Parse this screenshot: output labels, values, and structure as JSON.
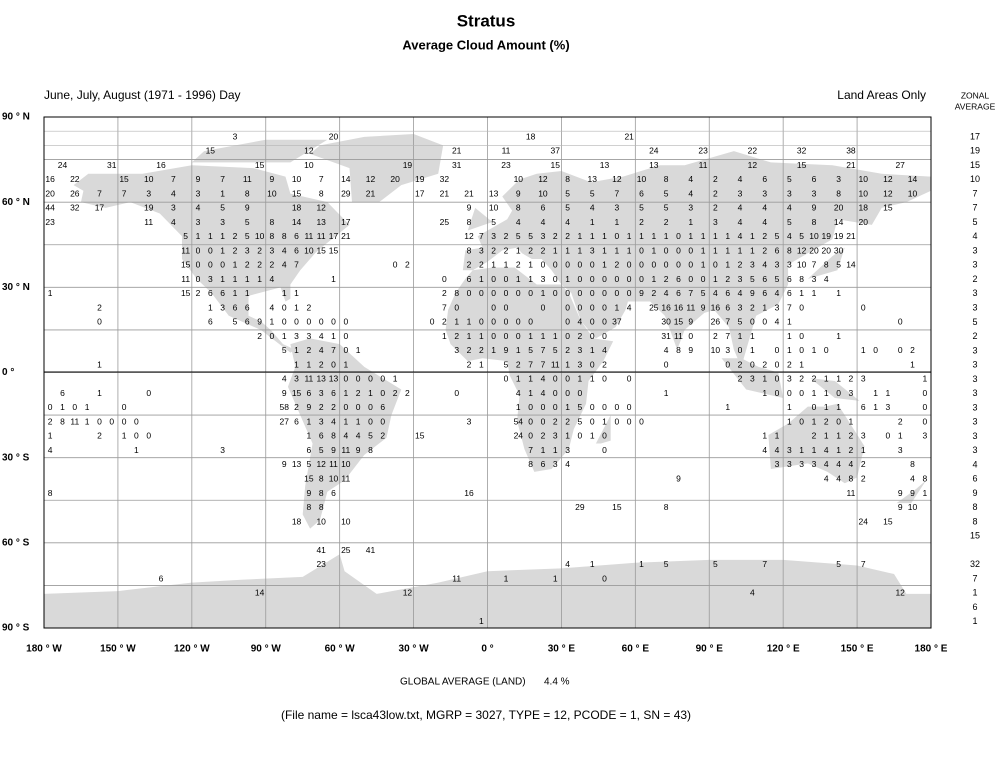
{
  "header": {
    "title": "Stratus",
    "subtitle": "Average Cloud Amount (%)",
    "period": "June, July, August (1971 - 1996) Day",
    "scope": "Land Areas Only"
  },
  "zonal_average": {
    "label_lines": [
      "ZONAL",
      "AVERAGE"
    ],
    "values": [
      17,
      19,
      15,
      10,
      7,
      7,
      5,
      4,
      3,
      3,
      2,
      3,
      3,
      5,
      2,
      3,
      3,
      3,
      3,
      3,
      3,
      3,
      3,
      4,
      6,
      9,
      8,
      8,
      15,
      null,
      32,
      7,
      1,
      6,
      1
    ]
  },
  "map": {
    "lat_labels": [
      "90 ° N",
      "60 ° N",
      "30 ° N",
      "0 °",
      "30 ° S",
      "60 ° S",
      "90 ° S"
    ],
    "lon_labels": [
      "180 ° W",
      "150 ° W",
      "120 ° W",
      "90 ° W",
      "60 ° W",
      "30 ° W",
      "0 °",
      "30 ° E",
      "60 ° E",
      "90 ° E",
      "120 ° E",
      "150 ° E",
      "180 ° E"
    ],
    "rows": [
      {
        "15": 3,
        "23": 20,
        "39": 18,
        "47": 21
      },
      {
        "13": 15,
        "21": 12,
        "33": 21,
        "37": 11,
        "41": 37,
        "49": 24,
        "53": 23,
        "57": 22,
        "61": 32,
        "65": 38
      },
      {
        "1": 24,
        "5": 31,
        "9": 16,
        "17": 15,
        "21": 10,
        "29": 19,
        "33": 31,
        "37": 23,
        "41": 15,
        "45": 13,
        "49": 13,
        "53": 11,
        "57": 12,
        "61": 15,
        "65": 21,
        "69": 27
      },
      {
        "0": 16,
        "2": 22,
        "6": 15,
        "8": 10,
        "10": 7,
        "12": 9,
        "14": 7,
        "16": 11,
        "18": 9,
        "20": 10,
        "22": 7,
        "24": 14,
        "26": 12,
        "28": 20,
        "30": 19,
        "32": 32,
        "38": 10,
        "40": 12,
        "42": 8,
        "44": 13,
        "46": 12,
        "48": 10,
        "50": 8,
        "52": 4,
        "54": 2,
        "56": 4,
        "58": 6,
        "60": 5,
        "62": 6,
        "64": 3,
        "66": 10,
        "68": 12,
        "70": 14
      },
      {
        "0": 20,
        "2": 26,
        "4": 7,
        "6": 7,
        "8": 3,
        "10": 4,
        "12": 3,
        "14": 1,
        "16": 8,
        "18": 10,
        "20": 15,
        "22": 8,
        "24": 29,
        "26": 21,
        "30": 17,
        "32": 21,
        "34": 21,
        "36": 13,
        "38": 9,
        "40": 10,
        "42": 5,
        "44": 5,
        "46": 7,
        "48": 6,
        "50": 5,
        "52": 4,
        "54": 2,
        "56": 3,
        "58": 3,
        "60": 3,
        "62": 3,
        "64": 8,
        "66": 10,
        "68": 12,
        "70": 10
      },
      {
        "0": 44,
        "2": 32,
        "4": 17,
        "8": 19,
        "10": 3,
        "12": 4,
        "14": 5,
        "16": 9,
        "20": 18,
        "22": 12,
        "34": 9,
        "36": 10,
        "38": 8,
        "40": 6,
        "42": 5,
        "44": 4,
        "46": 3,
        "48": 5,
        "50": 5,
        "52": 3,
        "54": 2,
        "56": 4,
        "58": 4,
        "60": 4,
        "62": 9,
        "64": 20,
        "66": 18,
        "68": 15
      },
      {
        "0": 23,
        "8": 11,
        "10": 4,
        "12": 3,
        "14": 3,
        "16": 5,
        "18": 8,
        "20": 14,
        "22": 13,
        "24": 17,
        "32": 25,
        "34": 8,
        "36": 5,
        "38": 4,
        "40": 4,
        "42": 4,
        "44": 1,
        "46": 1,
        "48": 2,
        "50": 2,
        "52": 1,
        "54": 3,
        "56": 4,
        "58": 4,
        "60": 5,
        "62": 8,
        "64": 14,
        "66": 20
      },
      {
        "11": 5,
        "12": 1,
        "13": 1,
        "14": 1,
        "15": 2,
        "16": 5,
        "17": 10,
        "18": 8,
        "19": 8,
        "20": 6,
        "21": 11,
        "22": 11,
        "23": 17,
        "24": 21,
        "34": 12,
        "35": 7,
        "36": 3,
        "37": 2,
        "38": 5,
        "39": 5,
        "40": 3,
        "41": 2,
        "42": 2,
        "43": 1,
        "44": 1,
        "45": 1,
        "46": 0,
        "47": 1,
        "48": 1,
        "49": 1,
        "50": 1,
        "51": 0,
        "52": 1,
        "53": 1,
        "54": 1,
        "55": 1,
        "56": 4,
        "57": 1,
        "58": 2,
        "59": 5,
        "60": 4,
        "61": 5,
        "62": 10,
        "63": 19,
        "64": 19,
        "65": 21
      },
      {
        "11": 11,
        "12": 0,
        "13": 0,
        "14": 1,
        "15": 2,
        "16": 3,
        "17": 2,
        "18": 3,
        "19": 4,
        "20": 6,
        "21": 10,
        "22": 15,
        "23": 15,
        "34": 8,
        "35": 3,
        "36": 2,
        "37": 2,
        "38": 1,
        "39": 2,
        "40": 2,
        "41": 1,
        "42": 1,
        "43": 1,
        "44": 3,
        "45": 1,
        "46": 1,
        "47": 1,
        "48": 0,
        "49": 1,
        "50": 0,
        "51": 0,
        "52": 0,
        "53": 1,
        "54": 1,
        "55": 1,
        "56": 1,
        "57": 1,
        "58": 2,
        "59": 6,
        "60": 8,
        "61": 12,
        "62": 20,
        "63": 20,
        "64": 30
      },
      {
        "11": 15,
        "12": 0,
        "13": 0,
        "14": 0,
        "15": 1,
        "16": 2,
        "17": 2,
        "18": 2,
        "19": 4,
        "20": 7,
        "28": 0,
        "29": 2,
        "34": 2,
        "35": 2,
        "36": 1,
        "37": 1,
        "38": 2,
        "39": 1,
        "40": 0,
        "41": 0,
        "42": 0,
        "43": 0,
        "44": 0,
        "45": 1,
        "46": 2,
        "47": 0,
        "48": 0,
        "49": 0,
        "50": 0,
        "51": 0,
        "52": 0,
        "53": 1,
        "54": 0,
        "55": 1,
        "56": 2,
        "57": 3,
        "58": 4,
        "59": 3,
        "60": 3,
        "61": 10,
        "62": 7,
        "63": 8,
        "64": 5,
        "65": 14
      },
      {
        "11": 11,
        "12": 0,
        "13": 3,
        "14": 1,
        "15": 1,
        "16": 1,
        "17": 1,
        "18": 4,
        "23": 1,
        "32": 0,
        "34": 6,
        "35": 1,
        "36": 0,
        "37": 0,
        "38": 1,
        "39": 1,
        "40": 3,
        "41": 0,
        "42": 1,
        "43": 0,
        "44": 0,
        "45": 0,
        "46": 0,
        "47": 0,
        "48": 0,
        "49": 1,
        "50": 2,
        "51": 6,
        "52": 0,
        "53": 0,
        "54": 1,
        "55": 2,
        "56": 3,
        "57": 5,
        "58": 6,
        "59": 5,
        "60": 6,
        "61": 8,
        "62": 3,
        "63": 4
      },
      {
        "0": 1,
        "11": 15,
        "12": 2,
        "13": 6,
        "14": 6,
        "15": 1,
        "16": 1,
        "19": 1,
        "20": 1,
        "32": 2,
        "33": 8,
        "34": 0,
        "35": 0,
        "36": 0,
        "37": 0,
        "38": 0,
        "39": 0,
        "40": 1,
        "41": 0,
        "42": 0,
        "43": 0,
        "44": 0,
        "45": 0,
        "46": 0,
        "47": 0,
        "48": 9,
        "49": 2,
        "50": 4,
        "51": 6,
        "52": 7,
        "53": 5,
        "54": 4,
        "55": 6,
        "56": 4,
        "57": 9,
        "58": 6,
        "59": 4,
        "60": 6,
        "61": 1,
        "62": 1,
        "64": 1
      },
      {
        "4": 2,
        "13": 1,
        "14": 3,
        "15": 6,
        "16": 6,
        "18": 4,
        "19": 0,
        "20": 1,
        "21": 2,
        "32": 7,
        "33": 0,
        "36": 0,
        "37": 0,
        "40": 0,
        "42": 0,
        "43": 0,
        "44": 0,
        "45": 0,
        "46": 1,
        "47": 4,
        "49": 25,
        "50": 16,
        "51": 16,
        "52": 11,
        "53": 9,
        "54": 16,
        "55": 6,
        "56": 3,
        "57": 2,
        "58": 1,
        "59": 3,
        "60": 7,
        "61": 0,
        "66": 0
      },
      {
        "4": 0,
        "13": 6,
        "15": 5,
        "16": 6,
        "17": 9,
        "18": 1,
        "19": 0,
        "20": 0,
        "21": 0,
        "22": 0,
        "23": 0,
        "24": 0,
        "31": 0,
        "32": 2,
        "33": 1,
        "34": 1,
        "35": 0,
        "36": 0,
        "37": 0,
        "38": 0,
        "39": 0,
        "42": 0,
        "43": 4,
        "44": 0,
        "45": 0,
        "46": 37,
        "50": 30,
        "51": 15,
        "52": 9,
        "54": 26,
        "55": 7,
        "56": 5,
        "57": 0,
        "58": 0,
        "59": 4,
        "60": 1,
        "69": 0
      },
      {
        "17": 2,
        "18": 0,
        "19": 1,
        "20": 3,
        "21": 3,
        "22": 4,
        "23": 1,
        "24": 0,
        "32": 1,
        "33": 2,
        "34": 1,
        "35": 1,
        "36": 0,
        "37": 0,
        "38": 0,
        "39": 1,
        "40": 1,
        "41": 1,
        "42": 0,
        "43": 2,
        "44": 0,
        "45": 0,
        "50": 31,
        "51": 11,
        "52": 0,
        "54": 2,
        "55": 7,
        "56": 1,
        "57": 1,
        "60": 1,
        "61": 0,
        "64": 1
      },
      {
        "19": 5,
        "20": 1,
        "21": 2,
        "22": 4,
        "23": 7,
        "24": 0,
        "25": 1,
        "33": 3,
        "34": 2,
        "35": 2,
        "36": 1,
        "37": 9,
        "38": 1,
        "39": 5,
        "40": 7,
        "41": 5,
        "42": 2,
        "43": 3,
        "44": 1,
        "45": 4,
        "50": 4,
        "51": 8,
        "52": 9,
        "54": 10,
        "55": 3,
        "56": 0,
        "57": 1,
        "59": 0,
        "60": 1,
        "61": 0,
        "62": 1,
        "63": 0,
        "66": 1,
        "67": 0,
        "69": 0,
        "70": 2
      },
      {
        "4": 1,
        "20": 1,
        "21": 1,
        "22": 2,
        "23": 0,
        "24": 1,
        "34": 2,
        "35": 1,
        "37": 5,
        "38": 2,
        "39": 7,
        "40": 7,
        "41": 11,
        "42": 1,
        "43": 3,
        "44": 0,
        "45": 2,
        "50": 0,
        "55": 0,
        "56": 2,
        "57": 0,
        "58": 2,
        "59": 0,
        "60": 2,
        "61": 1,
        "70": 1
      },
      {
        "19": 4,
        "20": 3,
        "21": 11,
        "22": 13,
        "23": 13,
        "24": 0,
        "25": 0,
        "26": 0,
        "27": 0,
        "28": 1,
        "37": 0,
        "38": 1,
        "39": 1,
        "40": 4,
        "41": 0,
        "42": 0,
        "43": 1,
        "44": 1,
        "45": 0,
        "47": 0,
        "56": 2,
        "57": 3,
        "58": 1,
        "59": 0,
        "60": 3,
        "61": 2,
        "62": 2,
        "63": 1,
        "64": 1,
        "65": 2,
        "66": 3,
        "71": 1
      },
      {
        "1": 6,
        "4": 1,
        "8": 0,
        "19": 9,
        "20": 15,
        "21": 6,
        "22": 3,
        "23": 6,
        "24": 1,
        "25": 2,
        "26": 1,
        "27": 0,
        "28": 2,
        "29": 2,
        "33": 0,
        "38": 4,
        "39": 1,
        "40": 4,
        "41": 0,
        "42": 0,
        "43": 0,
        "50": 1,
        "58": 1,
        "59": 0,
        "60": 0,
        "61": 0,
        "62": 1,
        "63": 1,
        "64": 0,
        "65": 3,
        "67": 1,
        "68": 1,
        "71": 0
      },
      {
        "0": 0,
        "1": 1,
        "2": 0,
        "3": 1,
        "6": 0,
        "19": 58,
        "20": 2,
        "21": 9,
        "22": 2,
        "23": 2,
        "24": 0,
        "25": 0,
        "26": 0,
        "27": 6,
        "38": 1,
        "39": 0,
        "40": 0,
        "41": 0,
        "42": 1,
        "43": 5,
        "44": 0,
        "45": 0,
        "46": 0,
        "47": 0,
        "55": 1,
        "60": 1,
        "62": 0,
        "63": 1,
        "64": 1,
        "66": 6,
        "67": 1,
        "68": 3,
        "71": 0
      },
      {
        "0": 2,
        "1": 8,
        "2": 11,
        "3": 1,
        "4": 0,
        "5": 0,
        "6": 0,
        "7": 0,
        "19": 27,
        "20": 6,
        "21": 1,
        "22": 3,
        "23": 4,
        "24": 1,
        "25": 1,
        "26": 0,
        "27": 0,
        "34": 3,
        "38": 54,
        "39": 0,
        "40": 0,
        "41": 2,
        "42": 2,
        "43": 5,
        "44": 0,
        "45": 1,
        "46": 0,
        "47": 0,
        "48": 0,
        "60": 1,
        "61": 0,
        "62": 1,
        "63": 2,
        "64": 0,
        "65": 1,
        "69": 2,
        "71": 0
      },
      {
        "0": 1,
        "4": 2,
        "6": 1,
        "7": 0,
        "8": 0,
        "21": 1,
        "22": 6,
        "23": 8,
        "24": 4,
        "25": 4,
        "26": 5,
        "27": 2,
        "30": 15,
        "38": 24,
        "39": 0,
        "40": 2,
        "41": 3,
        "42": 1,
        "43": 0,
        "44": 1,
        "45": 0,
        "58": 1,
        "59": 1,
        "62": 2,
        "63": 1,
        "64": 1,
        "65": 2,
        "66": 3,
        "68": 0,
        "69": 1,
        "71": 3
      },
      {
        "0": 4,
        "7": 1,
        "14": 3,
        "21": 6,
        "22": 5,
        "23": 9,
        "24": 11,
        "25": 9,
        "26": 8,
        "39": 7,
        "40": 1,
        "41": 1,
        "42": 3,
        "45": 0,
        "58": 4,
        "59": 4,
        "60": 3,
        "61": 1,
        "62": 1,
        "63": 4,
        "64": 1,
        "65": 2,
        "66": 1,
        "69": 3
      },
      {
        "19": 9,
        "20": 13,
        "21": 5,
        "22": 12,
        "23": 11,
        "24": 10,
        "39": 8,
        "40": 6,
        "41": 3,
        "42": 4,
        "59": 3,
        "60": 3,
        "61": 3,
        "62": 3,
        "63": 4,
        "64": 4,
        "65": 4,
        "66": 2,
        "70": 8
      },
      {
        "21": 15,
        "22": 8,
        "23": 10,
        "24": 11,
        "51": 9,
        "63": 4,
        "64": 4,
        "65": 8,
        "66": 2,
        "70": 4,
        "71": 8
      },
      {
        "0": 8,
        "21": 9,
        "22": 8,
        "23": 6,
        "34": 16,
        "65": 11,
        "69": 9,
        "70": 9,
        "71": 1
      },
      {
        "21": 8,
        "22": 8,
        "43": 29,
        "46": 15,
        "50": 8,
        "69": 9,
        "70": 10
      },
      {
        "20": 18,
        "22": 10,
        "24": 10,
        "66": 24,
        "68": 15
      },
      {},
      {
        "22": 41,
        "24": 25,
        "26": 41
      },
      {
        "22": 23,
        "42": 4,
        "44": 1,
        "48": 1,
        "50": 5,
        "54": 5,
        "58": 7,
        "64": 5,
        "66": 7
      },
      {
        "9": 6,
        "33": 11,
        "37": 1,
        "41": 1,
        "45": 0
      },
      {
        "17": 14,
        "29": 12,
        "57": 4,
        "69": 12
      },
      {},
      {
        "35": 1
      }
    ]
  },
  "footer": {
    "global_average_label": "GLOBAL AVERAGE (LAND)",
    "global_average_value": "4.4 %",
    "file_info": "(File name = lsca43low.txt, MGRP = 3027, TYPE = 12, PCODE = 1, SN = 43)"
  }
}
